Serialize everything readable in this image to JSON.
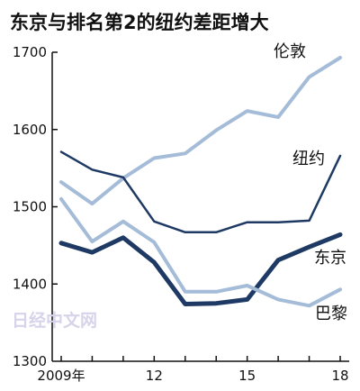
{
  "watermark": "日经中文网",
  "chart_data": {
    "type": "line",
    "title": "东京与排名第2的纽约差距增大",
    "xlabel": "",
    "ylabel": "",
    "x": [
      2009,
      2010,
      2011,
      2012,
      2013,
      2014,
      2015,
      2016,
      2017,
      2018
    ],
    "x_tick_values": [
      2009,
      2012,
      2015,
      2018
    ],
    "x_tick_labels": [
      "2009年",
      "12",
      "15",
      "18"
    ],
    "ylim": [
      1300,
      1700
    ],
    "y_ticks": [
      1300,
      1400,
      1500,
      1600,
      1700
    ],
    "grid": false,
    "series": [
      {
        "name": "伦敦",
        "color": "#a4bcd8",
        "width": 4,
        "values": [
          1532,
          1504,
          1537,
          1563,
          1569,
          1599,
          1624,
          1616,
          1668,
          1693
        ]
      },
      {
        "name": "纽约",
        "color": "#1e3a64",
        "width": 2.5,
        "values": [
          1571,
          1548,
          1538,
          1481,
          1467,
          1467,
          1480,
          1480,
          1482,
          1566
        ]
      },
      {
        "name": "东京",
        "color": "#1e3a64",
        "width": 5,
        "values": [
          1453,
          1441,
          1460,
          1428,
          1374,
          1375,
          1380,
          1431,
          1448,
          1464
        ]
      },
      {
        "name": "巴黎",
        "color": "#a4bcd8",
        "width": 4,
        "values": [
          1510,
          1455,
          1481,
          1454,
          1390,
          1390,
          1398,
          1380,
          1372,
          1393
        ]
      }
    ]
  }
}
